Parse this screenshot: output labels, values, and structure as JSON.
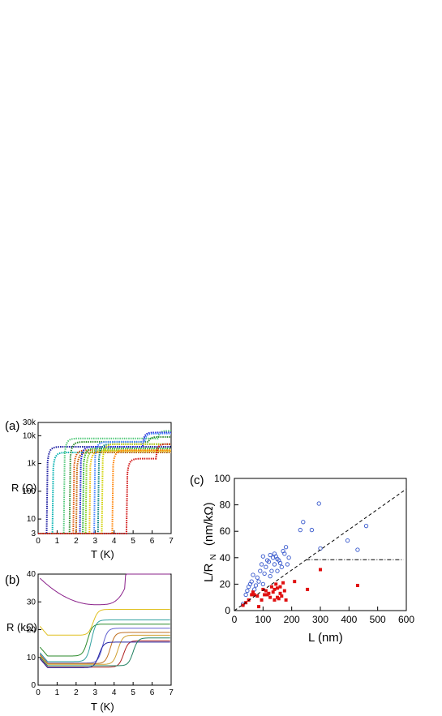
{
  "chart_data": [
    {
      "id": "a",
      "panel_label": "(a)",
      "type": "line",
      "xlabel": "T  (K)",
      "ylabel": "R  (Ω)",
      "xlim": [
        0,
        7
      ],
      "ylim": [
        3,
        30000
      ],
      "yscale": "log",
      "x_ticks": [
        "0",
        "1",
        "2",
        "3",
        "4",
        "5",
        "6",
        "7"
      ],
      "y_ticks": [
        {
          "v": 3,
          "label": "3"
        },
        {
          "v": 10,
          "label": "10"
        },
        {
          "v": 100,
          "label": "100"
        },
        {
          "v": 1000,
          "label": "1k"
        },
        {
          "v": 10000,
          "label": "10k"
        },
        {
          "v": 30000,
          "label": "30k"
        }
      ],
      "series": [
        {
          "color": "#1a1aa0",
          "tc": 0.45,
          "rn": 4000,
          "tc2": null,
          "rn2": null
        },
        {
          "color": "#00b0b0",
          "tc": 0.75,
          "rn": 2500,
          "tc2": null,
          "rn2": null
        },
        {
          "color": "#50c878",
          "tc": 1.35,
          "rn": 8000,
          "tc2": 6.3,
          "rn2": 15000
        },
        {
          "color": "#2e8b2e",
          "tc": 1.65,
          "rn": 6000,
          "tc2": 5.8,
          "rn2": 9000
        },
        {
          "color": "#e05000",
          "tc": 1.85,
          "rn": 3000,
          "tc2": null,
          "rn2": null
        },
        {
          "color": "#c06000",
          "tc": 2.0,
          "rn": 2500,
          "tc2": null,
          "rn2": null
        },
        {
          "color": "#1a1ad0",
          "tc": 2.2,
          "rn": 4000,
          "tc2": 5.5,
          "rn2": 13000
        },
        {
          "color": "#30b030",
          "tc": 2.35,
          "rn": 3500,
          "tc2": null,
          "rn2": null
        },
        {
          "color": "#80d020",
          "tc": 2.5,
          "rn": 3000,
          "tc2": null,
          "rn2": null
        },
        {
          "color": "#f0c000",
          "tc": 2.7,
          "rn": 2800,
          "tc2": null,
          "rn2": null
        },
        {
          "color": "#4080ff",
          "tc": 2.95,
          "rn": 6000,
          "tc2": 5.6,
          "rn2": 12000
        },
        {
          "color": "#008080",
          "tc": 3.15,
          "rn": 5000,
          "tc2": null,
          "rn2": null
        },
        {
          "color": "#d0d000",
          "tc": 3.35,
          "rn": 5000,
          "tc2": null,
          "rn2": null
        },
        {
          "color": "#ff8000",
          "tc": 3.9,
          "rn": 3000,
          "tc2": null,
          "rn2": null
        },
        {
          "color": "#d01010",
          "tc": 4.65,
          "rn": 1500,
          "tc2": 6.2,
          "rn2": 5000
        }
      ]
    },
    {
      "id": "b",
      "panel_label": "(b)",
      "type": "line",
      "xlabel": "T  (K)",
      "ylabel": "R  (kΩ)",
      "xlim": [
        0,
        7
      ],
      "ylim": [
        0,
        40
      ],
      "x_ticks": [
        "0",
        "1",
        "2",
        "3",
        "4",
        "5",
        "6",
        "7"
      ],
      "y_ticks": [
        "0",
        "10",
        "20",
        "30",
        "40"
      ],
      "series": [
        {
          "color": "#8a208a",
          "kind": "bowl",
          "r_min": 29.0,
          "r_left": 38.5,
          "r_right": 39.5
        },
        {
          "color": "#e0c020",
          "kind": "step",
          "r_low": 18.0,
          "r_high": 27.3,
          "t_step": 2.9
        },
        {
          "color": "#2a8a2a",
          "kind": "step",
          "r_low": 10.5,
          "r_high": 22.0,
          "t_step": 2.6
        },
        {
          "color": "#30a0a0",
          "kind": "step",
          "r_low": 8.5,
          "r_high": 23.5,
          "t_step": 2.8
        },
        {
          "color": "#6060d0",
          "kind": "step",
          "r_low": 8.0,
          "r_high": 20.5,
          "t_step": 3.4
        },
        {
          "color": "#c07020",
          "kind": "step",
          "r_low": 7.8,
          "r_high": 19.0,
          "t_step": 3.8
        },
        {
          "color": "#d0a030",
          "kind": "step",
          "r_low": 7.5,
          "r_high": 18.0,
          "t_step": 4.2
        },
        {
          "color": "#b02020",
          "kind": "step",
          "r_low": 6.5,
          "r_high": 16.0,
          "t_step": 4.5
        },
        {
          "color": "#2020a0",
          "kind": "step",
          "r_low": 6.3,
          "r_high": 15.5,
          "t_step": 3.2
        },
        {
          "color": "#208060",
          "kind": "step",
          "r_low": 7.0,
          "r_high": 17.0,
          "t_step": 5.0
        }
      ]
    },
    {
      "id": "c",
      "panel_label": "(c)",
      "type": "scatter",
      "xlabel": "L   (nm)",
      "ylabel": "L/R",
      "ylabel_sub": "N",
      "ylabel_unit": "(nm/kΩ)",
      "xlim": [
        0,
        600
      ],
      "ylim": [
        0,
        100
      ],
      "x_ticks": [
        "0",
        "100",
        "200",
        "300",
        "400",
        "500",
        "600"
      ],
      "y_ticks": [
        "0",
        "20",
        "40",
        "60",
        "80",
        "100"
      ],
      "series": [
        {
          "marker": "open-circle",
          "color": "#3355cc",
          "points": [
            [
              30,
              5
            ],
            [
              40,
              12
            ],
            [
              45,
              15
            ],
            [
              50,
              18
            ],
            [
              55,
              20
            ],
            [
              60,
              22
            ],
            [
              65,
              27
            ],
            [
              70,
              16
            ],
            [
              75,
              19
            ],
            [
              80,
              25
            ],
            [
              85,
              22
            ],
            [
              90,
              30
            ],
            [
              95,
              35
            ],
            [
              100,
              41
            ],
            [
              105,
              28
            ],
            [
              110,
              33
            ],
            [
              115,
              38
            ],
            [
              120,
              37
            ],
            [
              125,
              42
            ],
            [
              130,
              30
            ],
            [
              135,
              40
            ],
            [
              140,
              35
            ],
            [
              145,
              41
            ],
            [
              150,
              39
            ],
            [
              155,
              38
            ],
            [
              160,
              36
            ],
            [
              165,
              33
            ],
            [
              170,
              45
            ],
            [
              175,
              43
            ],
            [
              180,
              48
            ],
            [
              185,
              35
            ],
            [
              190,
              40
            ],
            [
              230,
              61
            ],
            [
              240,
              67
            ],
            [
              270,
              61
            ],
            [
              295,
              81
            ],
            [
              300,
              47
            ],
            [
              395,
              53
            ],
            [
              430,
              46
            ],
            [
              460,
              64
            ],
            [
              140,
              43
            ],
            [
              125,
              26
            ],
            [
              150,
              30
            ],
            [
              100,
              20
            ]
          ]
        },
        {
          "marker": "filled-square",
          "color": "#e01010",
          "points": [
            [
              30,
              4
            ],
            [
              40,
              6
            ],
            [
              50,
              8
            ],
            [
              60,
              12
            ],
            [
              65,
              14
            ],
            [
              70,
              12
            ],
            [
              80,
              11
            ],
            [
              85,
              3
            ],
            [
              95,
              8
            ],
            [
              100,
              16
            ],
            [
              105,
              12
            ],
            [
              110,
              15
            ],
            [
              115,
              12
            ],
            [
              120,
              13
            ],
            [
              125,
              10
            ],
            [
              130,
              18
            ],
            [
              135,
              14
            ],
            [
              140,
              16
            ],
            [
              145,
              20
            ],
            [
              150,
              17
            ],
            [
              155,
              9
            ],
            [
              160,
              13
            ],
            [
              165,
              11
            ],
            [
              170,
              21
            ],
            [
              175,
              15
            ],
            [
              180,
              8
            ],
            [
              210,
              22
            ],
            [
              255,
              16
            ],
            [
              300,
              31
            ],
            [
              430,
              19
            ],
            [
              150,
              10
            ],
            [
              140,
              8
            ],
            [
              160,
              18
            ]
          ]
        },
        {
          "line": "dashed",
          "points": [
            [
              0,
              0
            ],
            [
              600,
              92
            ]
          ]
        },
        {
          "line": "dash-dot",
          "points": [
            [
              250,
              38.5
            ],
            [
              590,
              38.5
            ]
          ]
        }
      ]
    }
  ]
}
